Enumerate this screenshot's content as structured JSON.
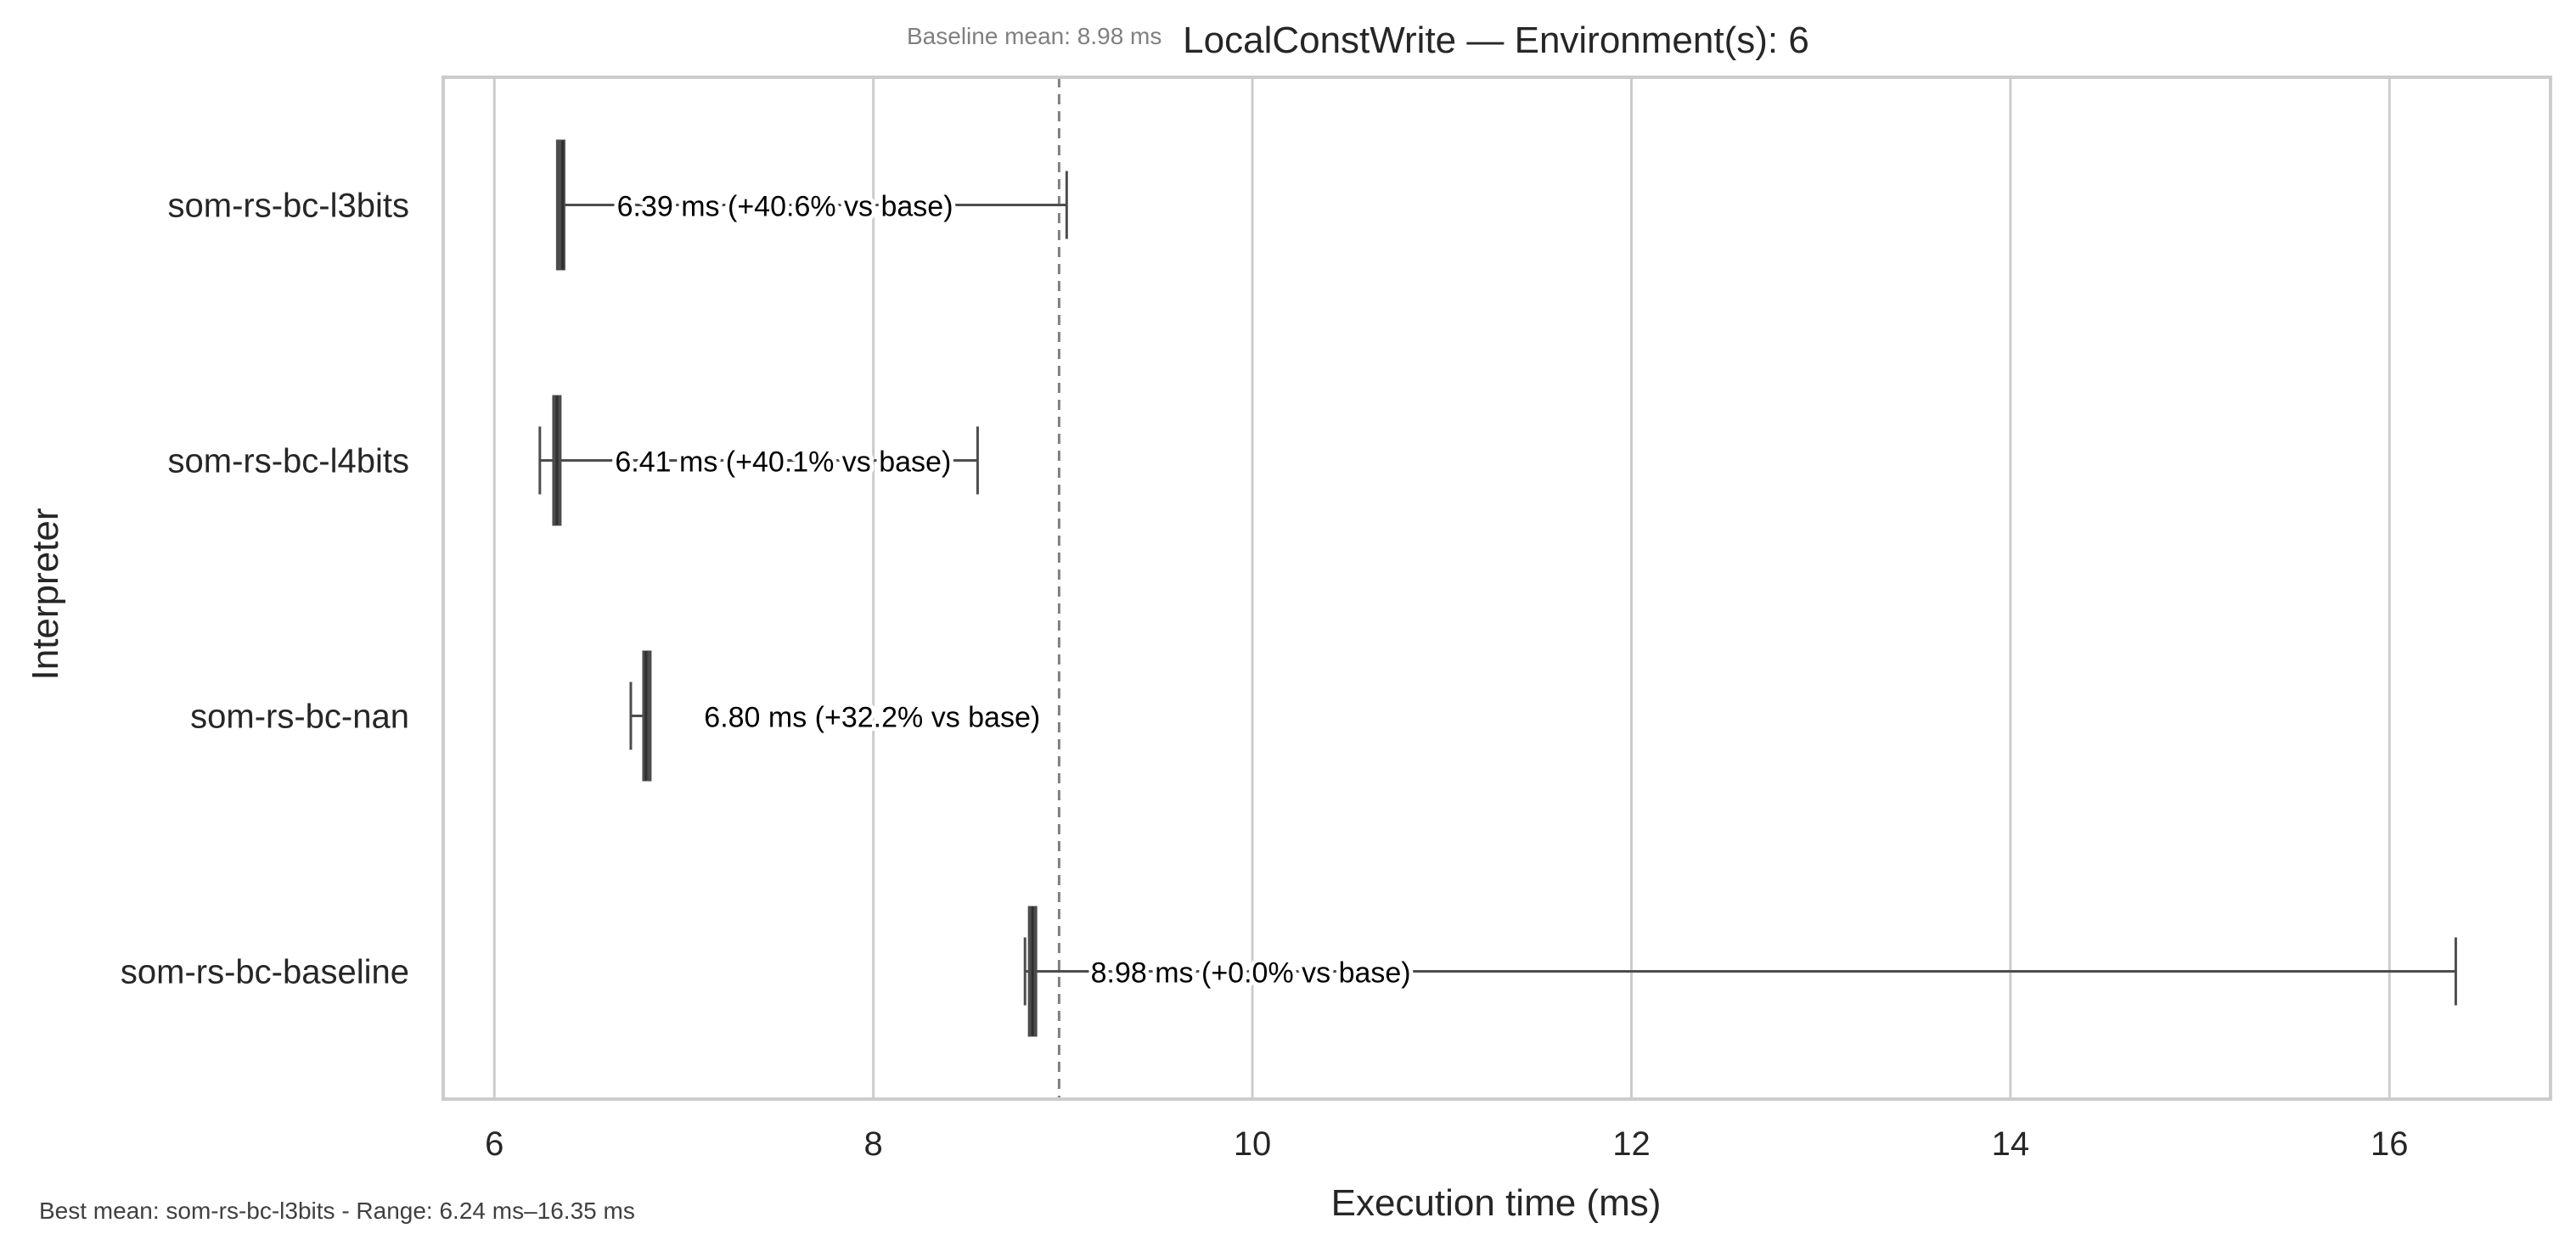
{
  "chart_data": {
    "type": "box",
    "orientation": "horizontal",
    "title": "LocalConstWrite — Environment(s): 6",
    "xlabel": "Execution time (ms)",
    "ylabel": "Interpreter",
    "xticks": [
      6,
      8,
      10,
      12,
      14,
      16
    ],
    "xlim": [
      5.73,
      16.85
    ],
    "grid": true,
    "categories": [
      "som-rs-bc-l3bits",
      "som-rs-bc-l4bits",
      "som-rs-bc-nan",
      "som-rs-bc-baseline"
    ],
    "series": [
      {
        "category": "som-rs-bc-l3bits",
        "min": 6.34,
        "q1": 6.34,
        "median": 6.36,
        "q3": 6.36,
        "max": 9.02,
        "label": "6.39 ms  (+40.6% vs base)"
      },
      {
        "category": "som-rs-bc-l4bits",
        "min": 6.24,
        "q1": 6.31,
        "median": 6.33,
        "q3": 6.35,
        "max": 8.55,
        "label": "6.41 ms  (+40.1% vs base)"
      },
      {
        "category": "som-rs-bc-nan",
        "min": 6.72,
        "q1": 6.79,
        "median": 6.8,
        "q3": 6.82,
        "max": 6.82,
        "label": "6.80 ms  (+32.2% vs base)"
      },
      {
        "category": "som-rs-bc-baseline",
        "min": 8.8,
        "q1": 8.82,
        "median": 8.84,
        "q3": 8.86,
        "max": 16.35,
        "label": "8.98 ms  (+0.0% vs base)"
      }
    ],
    "reference_line": {
      "value": 8.98,
      "label": "Baseline mean: 8.98 ms"
    },
    "footer": "Best mean: som-rs-bc-l3bits - Range: 6.24 ms–16.35 ms",
    "colors": {
      "box": "#4d4d4d",
      "grid": "#cccccc",
      "frame": "#cccccc",
      "reference": "#808080"
    }
  }
}
